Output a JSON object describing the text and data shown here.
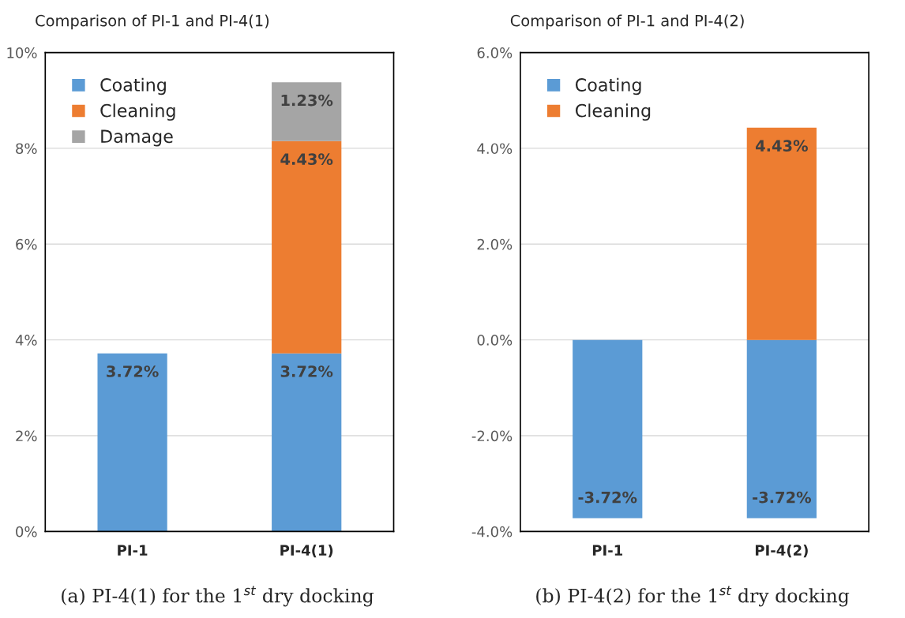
{
  "chart_data": [
    {
      "type": "bar",
      "stacked": true,
      "title": "Comparison of PI-1 and PI-4(1)",
      "categories": [
        "PI-1",
        "PI-4(1)"
      ],
      "series": [
        {
          "name": "Coating",
          "color": "#5b9bd5",
          "values": [
            3.72,
            3.72
          ],
          "value_labels": [
            "3.72%",
            "3.72%"
          ]
        },
        {
          "name": "Cleaning",
          "color": "#ed7d31",
          "values": [
            null,
            4.43
          ],
          "value_labels": [
            null,
            "4.43%"
          ]
        },
        {
          "name": "Damage",
          "color": "#a5a5a5",
          "values": [
            null,
            1.23
          ],
          "value_labels": [
            null,
            "1.23%"
          ]
        }
      ],
      "ylim": [
        0,
        10
      ],
      "yticks": [
        {
          "value": 0,
          "label": "0%"
        },
        {
          "value": 2,
          "label": "2%"
        },
        {
          "value": 4,
          "label": "4%"
        },
        {
          "value": 6,
          "label": "6%"
        },
        {
          "value": 8,
          "label": "8%"
        },
        {
          "value": 10,
          "label": "10%"
        }
      ],
      "grid": "y",
      "legend": "top left",
      "annotations": [
        "(a) PI-4(1) for the 1$^{st}$ dry docking"
      ]
    },
    {
      "type": "bar",
      "stacked": true,
      "title": "Comparison of PI-1 and PI-4(2)",
      "categories": [
        "PI-1",
        "PI-4(2)"
      ],
      "series": [
        {
          "name": "Coating",
          "color": "#5b9bd5",
          "values": [
            -3.72,
            -3.72
          ],
          "value_labels": [
            "-3.72%",
            "-3.72%"
          ]
        },
        {
          "name": "Cleaning",
          "color": "#ed7d31",
          "values": [
            null,
            4.43
          ],
          "value_labels": [
            null,
            "4.43%"
          ]
        }
      ],
      "ylim": [
        -4,
        6
      ],
      "yticks": [
        {
          "value": -4,
          "label": "-4.0%"
        },
        {
          "value": -2,
          "label": "-2.0%"
        },
        {
          "value": 0,
          "label": "0.0%"
        },
        {
          "value": 2,
          "label": "2.0%"
        },
        {
          "value": 4,
          "label": "4.0%"
        },
        {
          "value": 6,
          "label": "6.0%"
        }
      ],
      "grid": "y",
      "legend": "top left",
      "annotations": [
        "(b) PI-4(2) for the 1$^{st}$ dry docking"
      ]
    }
  ]
}
